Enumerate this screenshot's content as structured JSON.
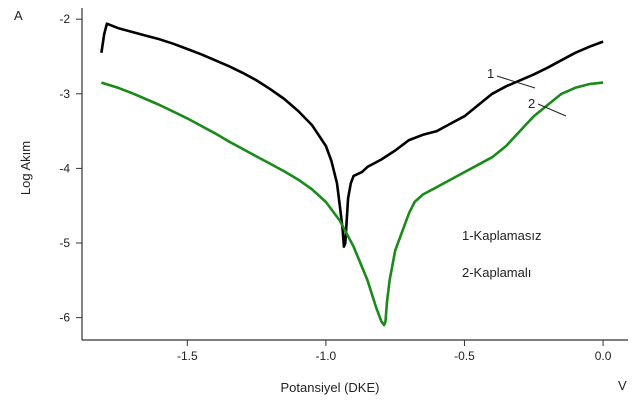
{
  "chart_data": {
    "type": "line",
    "title": "",
    "xlabel": "Potansiyel (DKE)",
    "ylabel": "Log Akım",
    "x_unit": "V",
    "y_unit": "A",
    "xlim": [
      -1.88,
      0.09
    ],
    "ylim": [
      -6.3,
      -1.85
    ],
    "x_ticks": [
      -1.5,
      -1.0,
      -0.5,
      0.0
    ],
    "x_tick_labels": [
      "-1.5",
      "-1.0",
      "-0.5",
      "0.0"
    ],
    "y_ticks": [
      -2,
      -3,
      -4,
      -5,
      -6
    ],
    "y_tick_labels": [
      "-2",
      "-3",
      "-4",
      "-5",
      "-6"
    ],
    "grid": false,
    "legend": {
      "entries": [
        "1-Kaplamasız",
        "2-Kaplamalı"
      ]
    },
    "series": [
      {
        "name": "1",
        "color": "#000000",
        "x": [
          -1.81,
          -1.8,
          -1.79,
          -1.75,
          -1.7,
          -1.65,
          -1.6,
          -1.55,
          -1.5,
          -1.45,
          -1.4,
          -1.35,
          -1.3,
          -1.25,
          -1.2,
          -1.15,
          -1.1,
          -1.05,
          -1.0,
          -0.98,
          -0.96,
          -0.95,
          -0.94,
          -0.935,
          -0.93,
          -0.925,
          -0.92,
          -0.91,
          -0.9,
          -0.87,
          -0.85,
          -0.8,
          -0.75,
          -0.7,
          -0.65,
          -0.6,
          -0.55,
          -0.5,
          -0.45,
          -0.4,
          -0.35,
          -0.3,
          -0.25,
          -0.2,
          -0.15,
          -0.1,
          -0.05,
          0.0
        ],
        "y": [
          -2.45,
          -2.2,
          -2.06,
          -2.12,
          -2.17,
          -2.22,
          -2.27,
          -2.33,
          -2.4,
          -2.47,
          -2.55,
          -2.63,
          -2.72,
          -2.82,
          -2.94,
          -3.07,
          -3.23,
          -3.42,
          -3.7,
          -3.9,
          -4.2,
          -4.5,
          -4.8,
          -5.05,
          -5.0,
          -4.7,
          -4.4,
          -4.2,
          -4.1,
          -4.05,
          -3.98,
          -3.88,
          -3.76,
          -3.62,
          -3.55,
          -3.5,
          -3.4,
          -3.3,
          -3.15,
          -3.0,
          -2.9,
          -2.82,
          -2.74,
          -2.65,
          -2.55,
          -2.45,
          -2.37,
          -2.3
        ]
      },
      {
        "name": "2",
        "color": "#1a8a1a",
        "x": [
          -1.81,
          -1.75,
          -1.7,
          -1.65,
          -1.6,
          -1.55,
          -1.5,
          -1.45,
          -1.4,
          -1.35,
          -1.3,
          -1.25,
          -1.2,
          -1.15,
          -1.1,
          -1.05,
          -1.0,
          -0.95,
          -0.9,
          -0.85,
          -0.82,
          -0.8,
          -0.79,
          -0.785,
          -0.78,
          -0.77,
          -0.75,
          -0.72,
          -0.7,
          -0.68,
          -0.65,
          -0.6,
          -0.55,
          -0.5,
          -0.45,
          -0.4,
          -0.35,
          -0.3,
          -0.25,
          -0.2,
          -0.15,
          -0.1,
          -0.05,
          0.0
        ],
        "y": [
          -2.85,
          -2.92,
          -2.99,
          -3.07,
          -3.15,
          -3.24,
          -3.33,
          -3.43,
          -3.53,
          -3.64,
          -3.74,
          -3.84,
          -3.94,
          -4.04,
          -4.15,
          -4.28,
          -4.45,
          -4.7,
          -5.05,
          -5.5,
          -5.85,
          -6.05,
          -6.1,
          -6.05,
          -5.8,
          -5.5,
          -5.1,
          -4.8,
          -4.6,
          -4.45,
          -4.35,
          -4.25,
          -4.15,
          -4.05,
          -3.95,
          -3.85,
          -3.7,
          -3.5,
          -3.3,
          -3.15,
          -3.0,
          -2.92,
          -2.87,
          -2.85
        ]
      }
    ],
    "annotations": [
      {
        "text": "1",
        "series": "1"
      },
      {
        "text": "2",
        "series": "2"
      }
    ]
  }
}
